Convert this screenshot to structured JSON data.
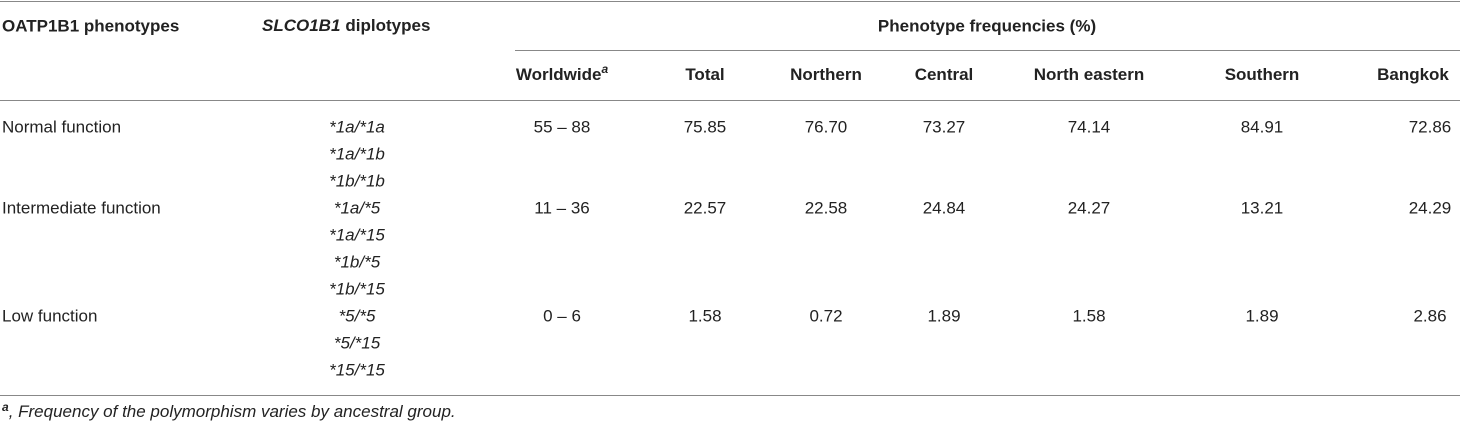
{
  "header": {
    "phenotype": "OATP1B1 phenotypes",
    "diplotype_gene": "SLCO1B1",
    "diplotype_label": "diplotypes",
    "group": "Phenotype frequencies (%)",
    "columns": [
      "Worldwide",
      "Total",
      "Northern",
      "Central",
      "North eastern",
      "Southern",
      "Bangkok"
    ],
    "worldwide_note": "a"
  },
  "rows": [
    {
      "phenotype": "Normal function",
      "diplotypes": [
        "*1a/*1a",
        "*1a/*1b",
        "*1b/*1b"
      ],
      "values": [
        "55 – 88",
        "75.85",
        "76.70",
        "73.27",
        "74.14",
        "84.91",
        "72.86"
      ]
    },
    {
      "phenotype": "Intermediate function",
      "diplotypes": [
        "*1a/*5",
        "*1a/*15",
        "*1b/*5",
        "*1b/*15"
      ],
      "values": [
        "11 – 36",
        "22.57",
        "22.58",
        "24.84",
        "24.27",
        "13.21",
        "24.29"
      ]
    },
    {
      "phenotype": "Low function",
      "diplotypes": [
        "*5/*5",
        "*5/*15",
        "*15/*15"
      ],
      "values": [
        "0 – 6",
        "1.58",
        "0.72",
        "1.89",
        "1.58",
        "1.89",
        "2.86"
      ]
    }
  ],
  "footnote": {
    "mark": "a",
    "text": ", Frequency of the polymorphism varies by ancestral group."
  }
}
